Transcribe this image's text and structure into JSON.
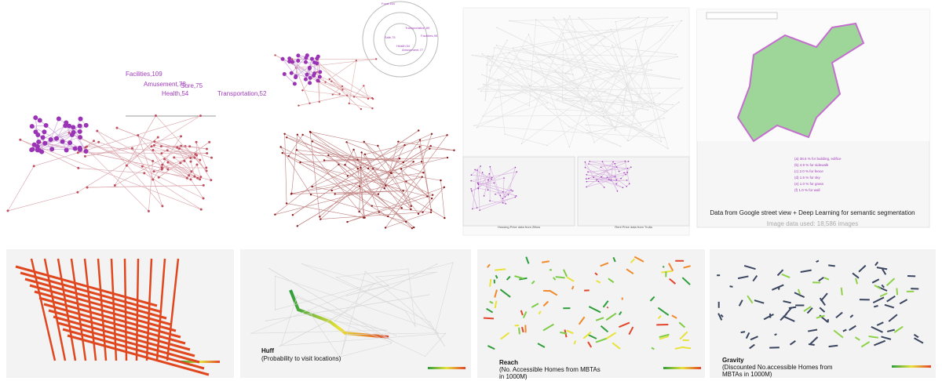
{
  "panels": {
    "category_chart": {
      "labels": [
        "Facilities,109",
        "Amusement,78",
        "Sore,75",
        "Health,54",
        "Transportation,52"
      ]
    },
    "radar": {
      "labels": [
        "Food,164",
        "Transportation,89",
        "Facilities,95",
        "Sale,75",
        "Health,54",
        "Amusement,77"
      ]
    },
    "price_maps": {
      "housing_caption": "Housing Price data from Zillow",
      "rent_caption": "Rent Price data from Trulia"
    },
    "street_view": {
      "legend": [
        "(a) 38.6 % for building, edifice",
        "(b) 4.9 % for sidewalk",
        "(c) 2.0 % for fence",
        "(d) 1.6 % for sky",
        "(e) 1.0 % for grass",
        "(f) 1.0 % for wall"
      ],
      "caption": "Data from Google street view + Deep Learning for semantic segmentation",
      "subcaption": "Image data used: 18,586 images"
    },
    "huff": {
      "title": "Huff",
      "subtitle": "(Probability to visit locations)"
    },
    "reach": {
      "title": "Reach",
      "subtitle": "(No. Accessible Homes from MBTAs in 1000M)"
    },
    "gravity": {
      "title": "Gravity",
      "subtitle": "(Discounted No.accessible Homes from MBTAs in 1000M)"
    }
  }
}
